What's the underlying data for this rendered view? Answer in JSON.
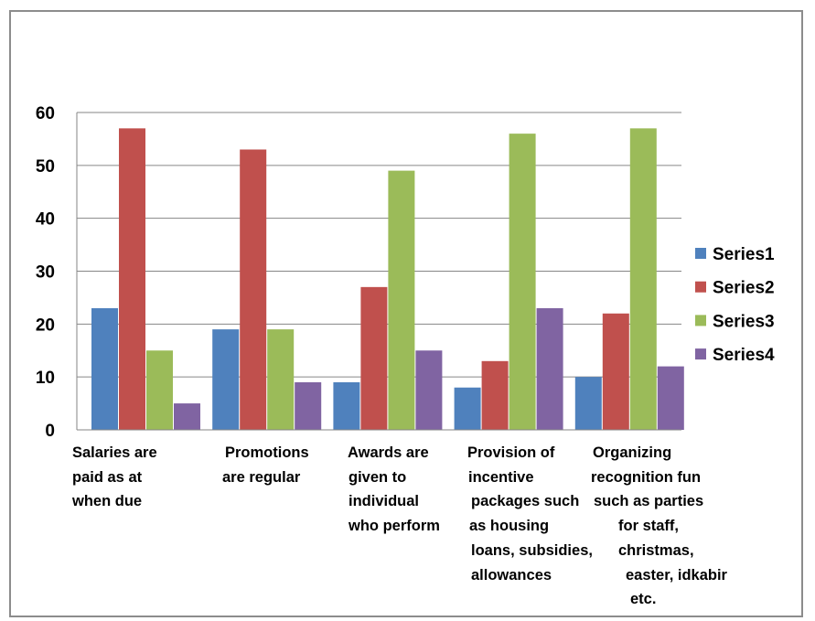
{
  "chart_data": {
    "type": "bar",
    "categories": [
      [
        "Salaries are",
        "paid as at",
        "when due"
      ],
      [
        "Promotions",
        "are regular"
      ],
      [
        "Awards are",
        "given to",
        "individual",
        "who perform"
      ],
      [
        "Provision of",
        "incentive",
        "packages such",
        "as housing",
        "loans, subsidies,",
        "allowances"
      ],
      [
        "Organizing",
        "recognition fun",
        "such as parties",
        "for staff,",
        "christmas,",
        "easter, idkabir",
        "etc."
      ]
    ],
    "series": [
      {
        "name": "Series1",
        "color": "#4f81bd",
        "values": [
          23,
          19,
          9,
          8,
          10
        ]
      },
      {
        "name": "Series2",
        "color": "#c0504d",
        "values": [
          57,
          53,
          27,
          13,
          22
        ]
      },
      {
        "name": "Series3",
        "color": "#9bbb59",
        "values": [
          15,
          19,
          49,
          56,
          57
        ]
      },
      {
        "name": "Series4",
        "color": "#8064a2",
        "values": [
          5,
          9,
          15,
          23,
          12
        ]
      }
    ],
    "ylim": [
      0,
      60
    ],
    "yticks": [
      0,
      10,
      20,
      30,
      40,
      50,
      60
    ],
    "grid": true,
    "legend_position": "right",
    "title": "",
    "xlabel": "",
    "ylabel": ""
  }
}
